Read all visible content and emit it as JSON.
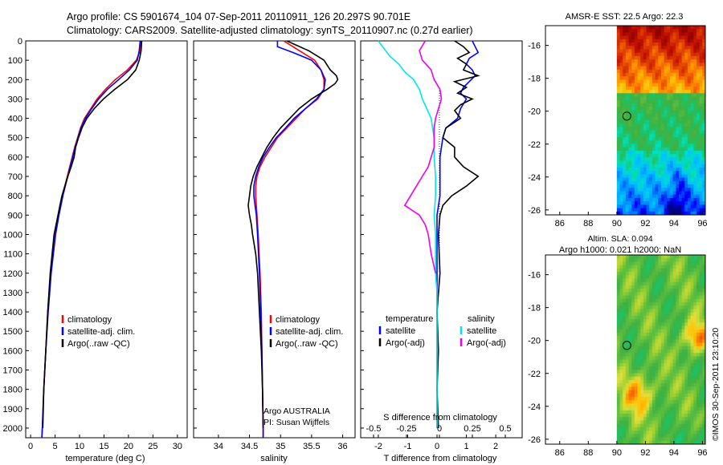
{
  "title_line1": "Argo profile: CS 5901674_104 07-Sep-2011 20110911_126 20.297S 90.701E",
  "title_line2": "Climatology: CARS2009. Satellite-adjusted climatology: synTS_20110907.nc (0.27d earlier)",
  "depth_ticks": [
    0,
    100,
    200,
    300,
    400,
    500,
    600,
    700,
    800,
    900,
    1000,
    1100,
    1200,
    1300,
    1400,
    1500,
    1600,
    1700,
    1800,
    1900,
    2000
  ],
  "colors": {
    "climatology": "#ff0000",
    "satellite": "#0000ff",
    "argo": "#000000",
    "sat_salinity": "#00e5ee",
    "argo_salinity": "#ee00ee"
  },
  "chart_data": [
    {
      "type": "line",
      "panel": "temperature",
      "xlabel": "temperature (deg C)",
      "xlim": [
        -1,
        32
      ],
      "ylim": [
        2050,
        0
      ],
      "xticks": [
        0,
        5,
        10,
        15,
        20,
        25,
        30
      ],
      "xtick_labels": [
        "0",
        "5",
        "10",
        "15",
        "20",
        "25",
        "30"
      ],
      "legend": [
        "climatology",
        "satellite-adj. clim.",
        "Argo(..raw -QC)"
      ],
      "series": [
        {
          "name": "climatology",
          "color": "#ff0000",
          "depth": [
            0,
            50,
            100,
            150,
            200,
            250,
            300,
            350,
            400,
            450,
            500,
            550,
            600,
            650,
            700,
            750,
            800,
            900,
            1000,
            1200,
            1400,
            1600,
            1800,
            2000,
            2050
          ],
          "values": [
            22.6,
            22.4,
            21.6,
            19.8,
            17.3,
            15.3,
            13.6,
            12.3,
            11.0,
            10.2,
            9.6,
            9.0,
            8.5,
            8.0,
            7.5,
            7.0,
            6.5,
            5.7,
            5.0,
            4.1,
            3.5,
            3.1,
            2.7,
            2.4,
            2.3
          ]
        },
        {
          "name": "satellite-adj. clim.",
          "color": "#0000ff",
          "depth": [
            0,
            50,
            100,
            150,
            200,
            250,
            300,
            350,
            400,
            450,
            500,
            550,
            600,
            650,
            700,
            750,
            800,
            900,
            1000,
            1200,
            1400,
            1600,
            1800,
            2000,
            2050
          ],
          "values": [
            22.4,
            22.2,
            21.8,
            20.2,
            18.0,
            15.7,
            13.9,
            12.5,
            11.2,
            10.3,
            9.7,
            9.1,
            8.6,
            8.1,
            7.6,
            7.1,
            6.6,
            5.8,
            5.1,
            4.2,
            3.6,
            3.1,
            2.7,
            2.4,
            2.3
          ]
        },
        {
          "name": "Argo(..raw -QC)",
          "color": "#000000",
          "depth": [
            0,
            50,
            100,
            150,
            200,
            250,
            300,
            350,
            400,
            450,
            500,
            550,
            600,
            650,
            700,
            750,
            800,
            850,
            900,
            1000,
            1100,
            1200,
            1400,
            1600,
            1800,
            2000
          ],
          "values": [
            22.7,
            22.6,
            22.2,
            21.5,
            19.8,
            17.2,
            14.9,
            13.0,
            11.5,
            10.5,
            9.8,
            9.2,
            8.9,
            8.3,
            7.6,
            7.0,
            6.4,
            6.0,
            5.6,
            4.8,
            4.4,
            4.0,
            3.5,
            3.1,
            2.7,
            2.5
          ]
        }
      ]
    },
    {
      "type": "line",
      "panel": "salinity",
      "xlabel": "salinity",
      "xlim": [
        33.6,
        36.2
      ],
      "ylim": [
        2050,
        0
      ],
      "xticks": [
        34,
        34.5,
        35,
        35.5,
        36
      ],
      "xtick_labels": [
        "34",
        "34.5",
        "35",
        "35.5",
        "36"
      ],
      "legend": [
        "climatology",
        "satellite-adj. clim.",
        "Argo(..raw -QC)"
      ],
      "annotation": [
        "Argo AUSTRALIA",
        "PI: Susan Wijffels"
      ],
      "series": [
        {
          "name": "climatology",
          "color": "#ff0000",
          "depth": [
            0,
            50,
            100,
            150,
            200,
            250,
            300,
            350,
            400,
            450,
            500,
            550,
            600,
            650,
            700,
            750,
            800,
            850,
            900,
            1000,
            1200,
            1400,
            1600,
            1800,
            2000,
            2050
          ],
          "values": [
            35.05,
            35.3,
            35.55,
            35.65,
            35.7,
            35.7,
            35.6,
            35.4,
            35.25,
            35.1,
            34.95,
            34.85,
            34.75,
            34.67,
            34.62,
            34.6,
            34.6,
            34.61,
            34.62,
            34.64,
            34.67,
            34.69,
            34.7,
            34.71,
            34.72,
            34.72
          ]
        },
        {
          "name": "satellite-adj. clim.",
          "color": "#0000ff",
          "depth": [
            0,
            30,
            60,
            100,
            150,
            200,
            250,
            300,
            350,
            400,
            450,
            500,
            550,
            600,
            650,
            700,
            750,
            800,
            850,
            900,
            1000,
            1200,
            1400,
            1600,
            1800,
            2000,
            2050
          ],
          "values": [
            34.95,
            34.95,
            35.2,
            35.5,
            35.65,
            35.72,
            35.7,
            35.58,
            35.4,
            35.22,
            35.08,
            34.93,
            34.82,
            34.72,
            34.65,
            34.6,
            34.57,
            34.57,
            34.59,
            34.61,
            34.63,
            34.66,
            34.68,
            34.7,
            34.71,
            34.72,
            34.72
          ]
        },
        {
          "name": "Argo(..raw -QC)",
          "color": "#000000",
          "depth": [
            0,
            50,
            100,
            150,
            180,
            200,
            220,
            250,
            280,
            300,
            350,
            400,
            450,
            500,
            550,
            600,
            650,
            700,
            750,
            800,
            850,
            900,
            950,
            1000,
            1100,
            1200,
            1400,
            1600,
            1800,
            2000
          ],
          "values": [
            35.1,
            35.45,
            35.7,
            35.8,
            35.9,
            35.92,
            35.88,
            35.75,
            35.6,
            35.5,
            35.3,
            35.15,
            35.0,
            34.88,
            34.78,
            34.7,
            34.62,
            34.56,
            34.52,
            34.5,
            34.48,
            34.5,
            34.53,
            34.55,
            34.6,
            34.63,
            34.66,
            34.69,
            34.71,
            34.72
          ]
        }
      ]
    },
    {
      "type": "line",
      "panel": "difference",
      "xlim": [
        -2.6,
        2.9
      ],
      "ylim": [
        2050,
        0
      ],
      "top_xlabel": "S difference from climatology",
      "top_xticks": [
        -0.5,
        -0.25,
        0,
        0.25,
        0.5
      ],
      "top_xtick_labels": [
        "-0.5",
        "-0.25",
        "0",
        "0.25",
        "0.5"
      ],
      "xlabel": "T difference from climatology",
      "xticks": [
        -2,
        -1,
        0,
        1,
        2
      ],
      "xtick_labels": [
        "-2",
        "-1",
        "0",
        "1",
        "2"
      ],
      "legend_left_heading": "temperature",
      "legend_right_heading": "salinity",
      "legend_left": [
        "satellite",
        "Argo(-adj)"
      ],
      "legend_right": [
        "satellite",
        "Argo(-adj)"
      ],
      "series": [
        {
          "name": "temperature satellite",
          "color": "#0000ff",
          "depth": [
            0,
            30,
            60,
            90,
            120,
            150,
            180,
            210,
            240,
            270,
            300,
            350,
            400,
            450,
            500,
            600,
            700,
            800,
            900,
            1000,
            1200,
            1600,
            2000
          ],
          "values": [
            1.2,
            1.3,
            1.4,
            1.1,
            1.0,
            1.2,
            1.3,
            1.1,
            0.9,
            0.8,
            1.0,
            0.8,
            0.7,
            0.3,
            0.2,
            0.1,
            0.1,
            0.1,
            0.0,
            0.0,
            0.0,
            0.0,
            0.0
          ]
        },
        {
          "name": "temperature Argo(-adj)",
          "color": "#000000",
          "depth": [
            0,
            30,
            60,
            90,
            120,
            150,
            180,
            210,
            240,
            270,
            300,
            330,
            360,
            400,
            450,
            500,
            550,
            600,
            650,
            700,
            750,
            800,
            850,
            900,
            1000,
            1200,
            1400,
            1600,
            1800,
            2000
          ],
          "values": [
            0.6,
            0.9,
            1.1,
            0.7,
            1.0,
            0.9,
            1.4,
            0.6,
            1.0,
            0.7,
            1.2,
            0.8,
            0.6,
            0.8,
            0.3,
            0.2,
            0.6,
            0.6,
            0.9,
            1.4,
            1.0,
            0.5,
            0.2,
            0.1,
            0.05,
            0.1,
            0.0,
            0.05,
            0.0,
            0.05
          ]
        },
        {
          "name": "salinity satellite",
          "color": "#00e5ee",
          "depth": [
            0,
            40,
            80,
            120,
            160,
            200,
            250,
            300,
            350,
            400,
            450,
            500,
            550,
            600,
            700,
            800,
            900,
            1000,
            1100,
            1200,
            1300,
            1400,
            1600,
            1800,
            2000
          ],
          "values": [
            -2.0,
            -1.8,
            -1.6,
            -1.3,
            -1.1,
            -0.8,
            -0.6,
            -0.5,
            -0.35,
            -0.2,
            -0.15,
            -0.1,
            -0.1,
            -0.1,
            -0.05,
            -0.05,
            -0.1,
            -0.05,
            -0.05,
            -0.05,
            0.0,
            0.0,
            0.0,
            0.0,
            0.0
          ]
        },
        {
          "name": "salinity Argo(-adj)",
          "color": "#ee00ee",
          "depth": [
            0,
            50,
            100,
            150,
            200,
            250,
            300,
            350,
            400,
            450,
            500,
            550,
            600,
            650,
            700,
            750,
            800,
            850,
            900,
            950,
            1000,
            1100,
            1200
          ],
          "values": [
            -0.4,
            -0.6,
            -0.5,
            -0.2,
            -0.1,
            0.1,
            0.15,
            0.05,
            -0.05,
            -0.1,
            -0.1,
            -0.1,
            -0.2,
            -0.3,
            -0.5,
            -0.7,
            -0.9,
            -1.1,
            -0.6,
            -0.4,
            -0.3,
            -0.2,
            -0.05
          ]
        }
      ]
    },
    {
      "type": "heatmap",
      "panel": "sst_map",
      "title": "AMSR-E SST: 22.5  Argo: 22.3",
      "xlim": [
        85,
        96.2
      ],
      "ylim": [
        -26.3,
        -14.8
      ],
      "xticks": [
        86,
        88,
        90,
        92,
        94,
        96
      ],
      "xtick_labels": [
        "86",
        "88",
        "90",
        "92",
        "94",
        "96"
      ],
      "yticks": [
        -16,
        -18,
        -20,
        -22,
        -24,
        -26
      ],
      "ytick_labels": [
        "-16",
        "-18",
        "-20",
        "-22",
        "-24",
        "-26"
      ],
      "data_lon_range": [
        90,
        96.2
      ],
      "argo_position": {
        "lon": 90.701,
        "lat": -20.297
      }
    },
    {
      "type": "heatmap",
      "panel": "sla_map",
      "title_line1": "Altim. SLA: 0.094",
      "title_line2": "Argo h1000: 0.021 h2000: NaN",
      "xlim": [
        85,
        96.2
      ],
      "ylim": [
        -26.3,
        -14.8
      ],
      "xticks": [
        86,
        88,
        90,
        92,
        94,
        96
      ],
      "xtick_labels": [
        "86",
        "88",
        "90",
        "92",
        "94",
        "96"
      ],
      "yticks": [
        -16,
        -18,
        -20,
        -22,
        -24,
        -26
      ],
      "ytick_labels": [
        "-16",
        "-18",
        "-20",
        "-22",
        "-24",
        "-26"
      ],
      "data_lon_range": [
        90,
        96.2
      ],
      "argo_position": {
        "lon": 90.701,
        "lat": -20.297
      }
    }
  ],
  "watermark": "©IMOS 30-Sep-2011 23:10:20"
}
